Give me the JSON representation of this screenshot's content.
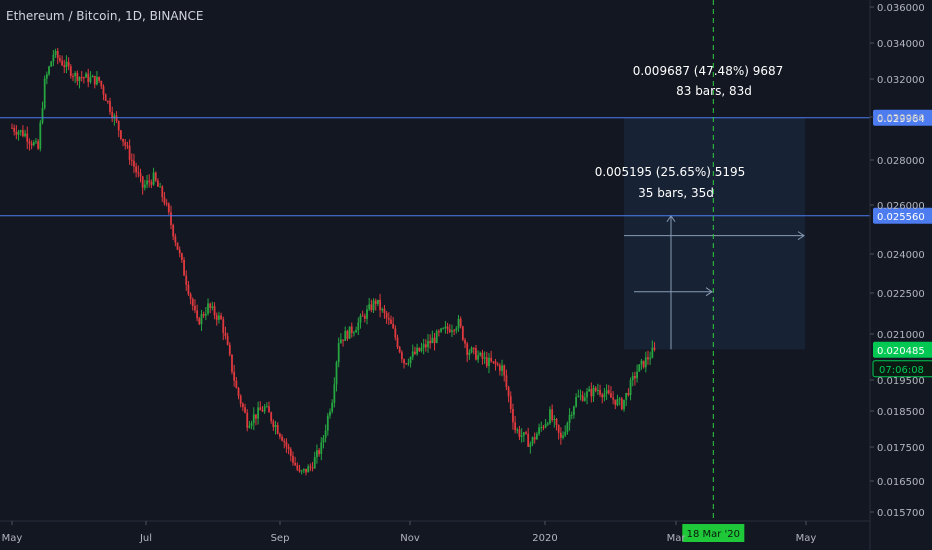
{
  "header": {
    "title": "Ethereum / Bitcoin, 1D, BINANCE"
  },
  "colors": {
    "background": "#131722",
    "up": "#26a641",
    "down": "#e03a3e",
    "hline": "#4d7cf0",
    "price_tag": "#00c853",
    "range_box": "#1b2d45",
    "text": "#d1d4dc",
    "axis_text": "#b2b5be"
  },
  "chart_data": {
    "type": "candlestick",
    "y_axis": {
      "ticks": [
        "0.036000",
        "0.034000",
        "0.032000",
        "0.030000",
        "0.028000",
        "0.026000",
        "0.024000",
        "0.022500",
        "0.021000",
        "0.019500",
        "0.018500",
        "0.017500",
        "0.016500",
        "0.015700"
      ]
    },
    "x_axis": {
      "ticks": [
        "May",
        "Jul",
        "Sep",
        "Nov",
        "2020",
        "Mar",
        "May"
      ]
    },
    "horizontal_lines": [
      {
        "price": 0.029964,
        "label": "0.029964"
      },
      {
        "price": 0.02556,
        "label": "0.025560"
      }
    ],
    "current_price": {
      "value": 0.020485,
      "label": "0.020485",
      "countdown": "07:06:08"
    },
    "vertical_marker": {
      "date": "18 Mar '20",
      "label": "18 Mar '20"
    },
    "measurements": [
      {
        "line1": "0.009687 (47.48%) 9687",
        "line2": "83 bars, 83d"
      },
      {
        "line1": "0.005195 (25.65%) 5195",
        "line2": "35 bars, 35d"
      }
    ],
    "series": [
      {
        "start": "2019-05-01",
        "end": "2020-02-20",
        "key_points": [
          [
            "2019-05-01",
            0.0295
          ],
          [
            "2019-05-07",
            0.0292
          ],
          [
            "2019-05-13",
            0.0285
          ],
          [
            "2019-05-16",
            0.0318
          ],
          [
            "2019-05-20",
            0.0334
          ],
          [
            "2019-05-30",
            0.0322
          ],
          [
            "2019-06-10",
            0.0319
          ],
          [
            "2019-06-16",
            0.0302
          ],
          [
            "2019-06-24",
            0.0282
          ],
          [
            "2019-06-30",
            0.0268
          ],
          [
            "2019-07-05",
            0.0272
          ],
          [
            "2019-07-10",
            0.0262
          ],
          [
            "2019-07-18",
            0.0236
          ],
          [
            "2019-07-25",
            0.0214
          ],
          [
            "2019-07-30",
            0.022
          ],
          [
            "2019-08-05",
            0.0215
          ],
          [
            "2019-08-12",
            0.0192
          ],
          [
            "2019-08-17",
            0.0182
          ],
          [
            "2019-08-25",
            0.0186
          ],
          [
            "2019-09-02",
            0.0178
          ],
          [
            "2019-09-10",
            0.0167
          ],
          [
            "2019-09-15",
            0.0169
          ],
          [
            "2019-09-20",
            0.0175
          ],
          [
            "2019-09-25",
            0.0189
          ],
          [
            "2019-09-28",
            0.0208
          ],
          [
            "2019-10-05",
            0.0212
          ],
          [
            "2019-10-15",
            0.0222
          ],
          [
            "2019-10-22",
            0.0213
          ],
          [
            "2019-10-28",
            0.0201
          ],
          [
            "2019-11-05",
            0.0205
          ],
          [
            "2019-11-15",
            0.0211
          ],
          [
            "2019-11-22",
            0.0214
          ],
          [
            "2019-11-26",
            0.0205
          ],
          [
            "2019-12-05",
            0.0201
          ],
          [
            "2019-12-12",
            0.0199
          ],
          [
            "2019-12-18",
            0.018
          ],
          [
            "2019-12-25",
            0.0176
          ],
          [
            "2020-01-03",
            0.0184
          ],
          [
            "2020-01-08",
            0.0177
          ],
          [
            "2020-01-15",
            0.0189
          ],
          [
            "2020-01-25",
            0.0192
          ],
          [
            "2020-02-05",
            0.0187
          ],
          [
            "2020-02-12",
            0.0198
          ],
          [
            "2020-02-20",
            0.020485
          ]
        ]
      }
    ]
  }
}
